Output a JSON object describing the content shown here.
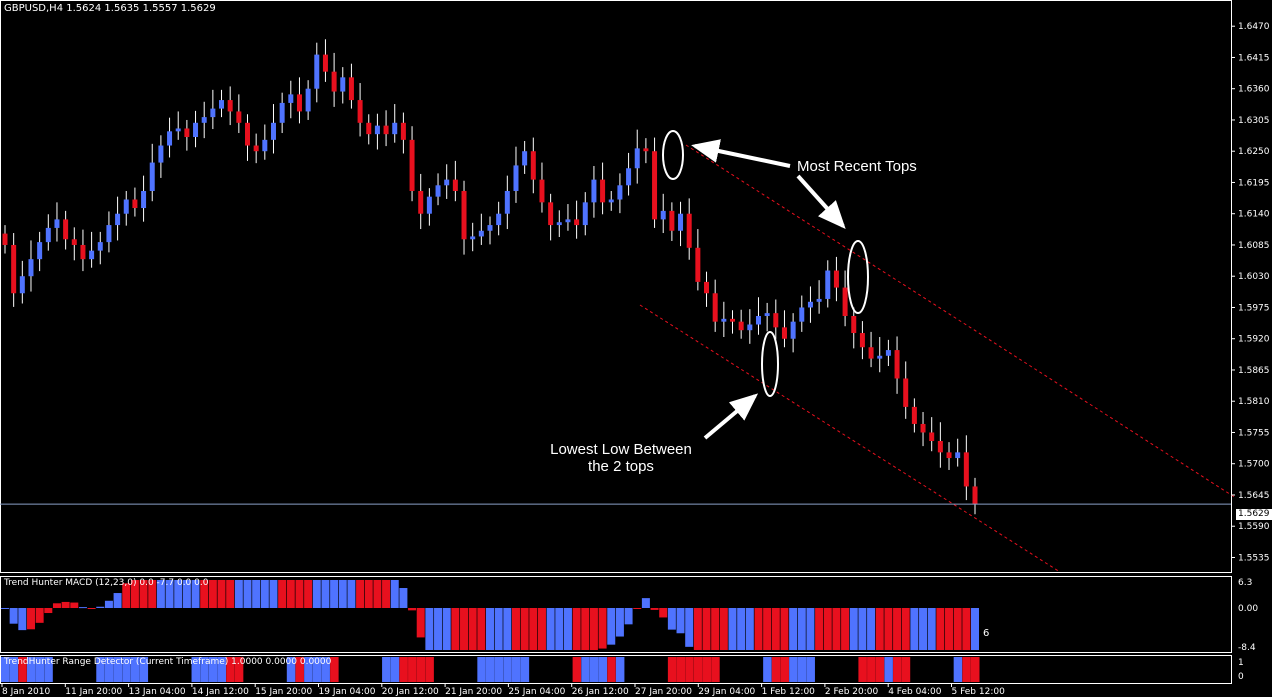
{
  "window": {
    "symbol_header": "GBPUSD,H4  1.5624 1.5635 1.5557 1.5629"
  },
  "price_axis": {
    "ticks": [
      "1.6470",
      "1.6415",
      "1.6360",
      "1.6305",
      "1.6250",
      "1.6195",
      "1.6140",
      "1.6085",
      "1.6030",
      "1.5975",
      "1.5920",
      "1.5865",
      "1.5810",
      "1.5755",
      "1.5700",
      "1.5645",
      "1.5590",
      "1.5535"
    ],
    "current_price": "1.5629"
  },
  "time_axis": {
    "ticks": [
      "8 Jan 2010",
      "11 Jan 20:00",
      "13 Jan 04:00",
      "14 Jan 12:00",
      "15 Jan 20:00",
      "19 Jan 04:00",
      "20 Jan 12:00",
      "21 Jan 20:00",
      "25 Jan 04:00",
      "26 Jan 12:00",
      "27 Jan 20:00",
      "29 Jan 04:00",
      "1 Feb 12:00",
      "2 Feb 20:00",
      "4 Feb 04:00",
      "5 Feb 12:00"
    ]
  },
  "annotations": {
    "tops_label": "Most Recent Tops",
    "low_label_line1": "Lowest Low Between",
    "low_label_line2": "the 2 tops"
  },
  "macd_panel": {
    "title": "Trend Hunter MACD (12,23,0) 0.0 -7.7 0.0 0.0",
    "ticks": [
      "6.3",
      "0.00",
      "-8.4"
    ],
    "last_value_label": "6"
  },
  "range_panel": {
    "title": "TrendHunter Range Detector (Current Timeframe) 1.0000 0.0000 0.0000",
    "ticks": [
      "1",
      "0"
    ]
  },
  "colors": {
    "bull": "#4f73ff",
    "bear": "#e8101e",
    "channel": "#e8101e",
    "axis": "#ffffff",
    "price_line": "#8aa0c8"
  },
  "chart_data": {
    "type": "candlestick",
    "symbol": "GBPUSD",
    "timeframe": "H4",
    "ylim": [
      1.552,
      1.6495
    ],
    "closes": [
      1.6085,
      1.6,
      1.603,
      1.606,
      1.609,
      1.6115,
      1.613,
      1.6095,
      1.6085,
      1.606,
      1.6075,
      1.609,
      1.612,
      1.614,
      1.6165,
      1.615,
      1.618,
      1.623,
      1.626,
      1.6285,
      1.629,
      1.6275,
      1.63,
      1.631,
      1.6325,
      1.634,
      1.632,
      1.63,
      1.626,
      1.625,
      1.627,
      1.63,
      1.6335,
      1.635,
      1.632,
      1.636,
      1.642,
      1.639,
      1.6355,
      1.638,
      1.634,
      1.63,
      1.628,
      1.6295,
      1.628,
      1.63,
      1.627,
      1.618,
      1.614,
      1.617,
      1.619,
      1.62,
      1.618,
      1.6095,
      1.61,
      1.611,
      1.612,
      1.614,
      1.618,
      1.6225,
      1.625,
      1.62,
      1.616,
      1.612,
      1.6125,
      1.613,
      1.612,
      1.616,
      1.62,
      1.616,
      1.6165,
      1.619,
      1.622,
      1.6255,
      1.625,
      1.613,
      1.6145,
      1.611,
      1.614,
      1.608,
      1.602,
      1.6,
      1.595,
      1.5955,
      1.595,
      1.5935,
      1.5945,
      1.596,
      1.5965,
      1.594,
      1.592,
      1.595,
      1.5975,
      1.5985,
      1.599,
      1.604,
      1.601,
      1.596,
      1.593,
      1.5905,
      1.5885,
      1.589,
      1.59,
      1.585,
      1.58,
      1.577,
      1.5755,
      1.574,
      1.572,
      1.571,
      1.572,
      1.566,
      1.5629
    ],
    "ma_note": ""
  }
}
